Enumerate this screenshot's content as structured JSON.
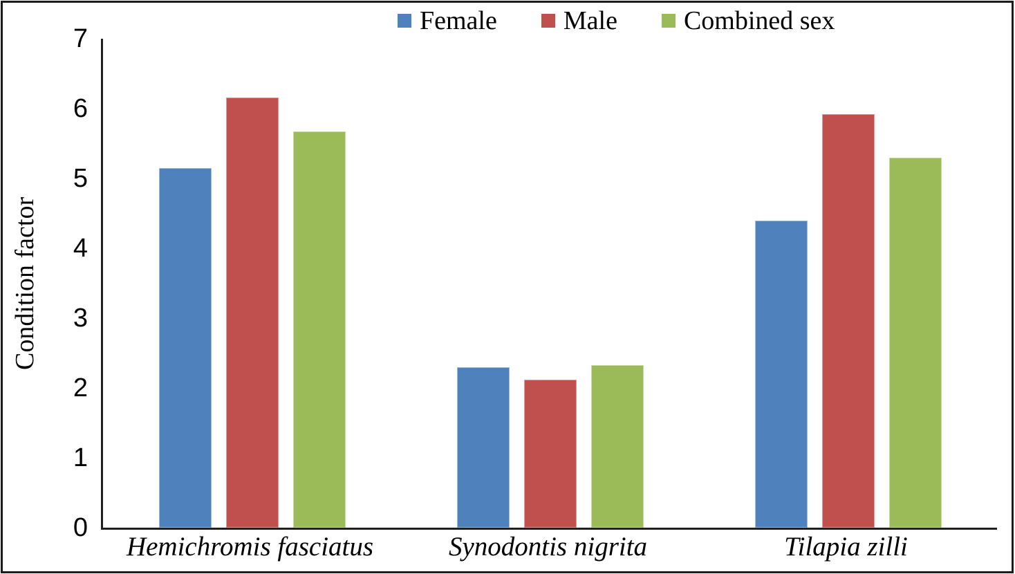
{
  "chart_data": {
    "type": "bar",
    "title": "",
    "xlabel": "",
    "ylabel": "Condition factor",
    "ylim": [
      0,
      7
    ],
    "yticks": [
      0,
      1,
      2,
      3,
      4,
      5,
      6,
      7
    ],
    "categories": [
      "Hemichromis fasciatus",
      "Synodontis nigrita",
      "Tilapia zilli"
    ],
    "category_style": "italic",
    "series": [
      {
        "name": "Female",
        "color": "#4F81BD",
        "values": [
          5.15,
          2.3,
          4.4
        ]
      },
      {
        "name": "Male",
        "color": "#C0504D",
        "values": [
          6.16,
          2.12,
          5.92
        ]
      },
      {
        "name": "Combined sex",
        "color": "#9BBB59",
        "values": [
          5.67,
          2.33,
          5.3
        ]
      }
    ],
    "legend_position": "top",
    "grid": false
  },
  "colors": {
    "axis": "#1f1f1f",
    "frame_border": "#1b1b1b",
    "text": "#000000",
    "background": "#ffffff"
  }
}
